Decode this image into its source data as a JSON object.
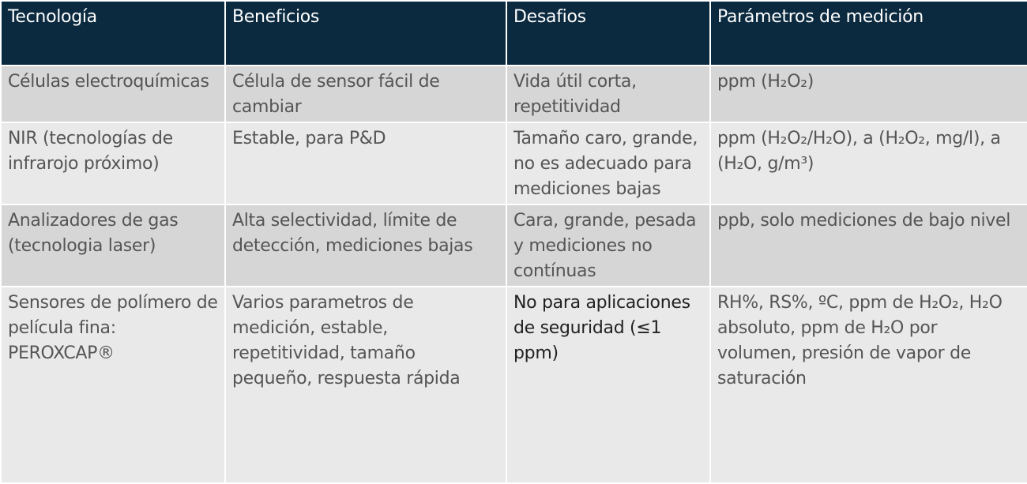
{
  "table": {
    "headers": [
      "Tecnología",
      "Beneficios",
      "Desafios",
      "Parámetros de medición"
    ],
    "rows": [
      [
        "Células electroquímicas",
        "Célula de sensor fácil de cambiar",
        "Vida útil corta, repetitividad",
        "ppm (H₂O₂)"
      ],
      [
        "NIR (tecnologías de infrarojo próximo)",
        "Estable, para P&D",
        "Tamaño caro, grande, no es adecuado para mediciones bajas",
        "ppm (H₂O₂/H₂O), a (H₂O₂, mg/l), a (H₂O, g/m³)"
      ],
      [
        "Analizadores de gas (tecnologia laser)",
        "Alta selectividad, límite de detección, mediciones bajas",
        "Cara, grande, pesada y mediciones no contínuas",
        "ppb, solo mediciones de bajo nivel"
      ],
      [
        "Sensores de polímero de película fina: PEROXCAP®",
        "Varios parametros de medición, estable, repetitividad, tamaño pequeño, respuesta rápida",
        "No para aplicaciones de seguridad (≤1 ppm)",
        "RH%, RS%, ºC, ppm de H₂O₂, H₂O absoluto, ppm de H₂O por volumen, presión de vapor de saturación"
      ]
    ]
  },
  "colors": {
    "header_bg": "#0b2a3f",
    "row_dark": "#d6d6d6",
    "row_light": "#e8e9e8",
    "text": "#555555"
  }
}
